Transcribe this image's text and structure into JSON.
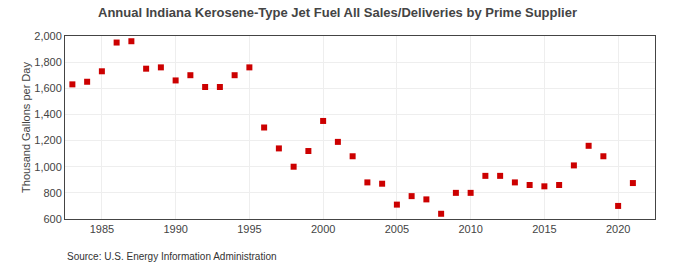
{
  "chart_data": {
    "type": "scatter",
    "title": "Annual Indiana Kerosene-Type Jet Fuel All Sales/Deliveries by Prime Supplier",
    "ylabel": "Thousand Gallons per Day",
    "annotations": [
      "Source: U.S. Energy Information Administration"
    ],
    "x": [
      1983,
      1984,
      1985,
      1986,
      1987,
      1988,
      1989,
      1990,
      1991,
      1992,
      1993,
      1994,
      1995,
      1996,
      1997,
      1998,
      1999,
      2000,
      2001,
      2002,
      2003,
      2004,
      2005,
      2006,
      2007,
      2008,
      2009,
      2010,
      2011,
      2012,
      2013,
      2014,
      2015,
      2016,
      2017,
      2018,
      2019,
      2020,
      2021
    ],
    "values": [
      1630,
      1650,
      1730,
      1950,
      1960,
      1750,
      1760,
      1660,
      1700,
      1610,
      1610,
      1700,
      1760,
      1300,
      1140,
      1000,
      1120,
      1350,
      1190,
      1080,
      880,
      870,
      710,
      775,
      750,
      640,
      800,
      800,
      930,
      930,
      880,
      860,
      850,
      860,
      1010,
      1160,
      1080,
      700,
      875
    ],
    "color": "#cc0000",
    "marker": "square",
    "xlim": [
      1982.5,
      2022.5
    ],
    "xticks": [
      1985,
      1990,
      1995,
      2000,
      2005,
      2010,
      2015,
      2020
    ],
    "ylim": [
      600,
      2000
    ],
    "yticks": [
      600,
      800,
      {
        "value": 1000,
        "label": "1,000"
      },
      {
        "value": 1200,
        "label": "1,200"
      },
      {
        "value": 1400,
        "label": "1,400"
      },
      {
        "value": 1600,
        "label": "1,600"
      },
      {
        "value": 1800,
        "label": "1,800"
      },
      {
        "value": 2000,
        "label": "2,000"
      }
    ],
    "grid": true
  }
}
